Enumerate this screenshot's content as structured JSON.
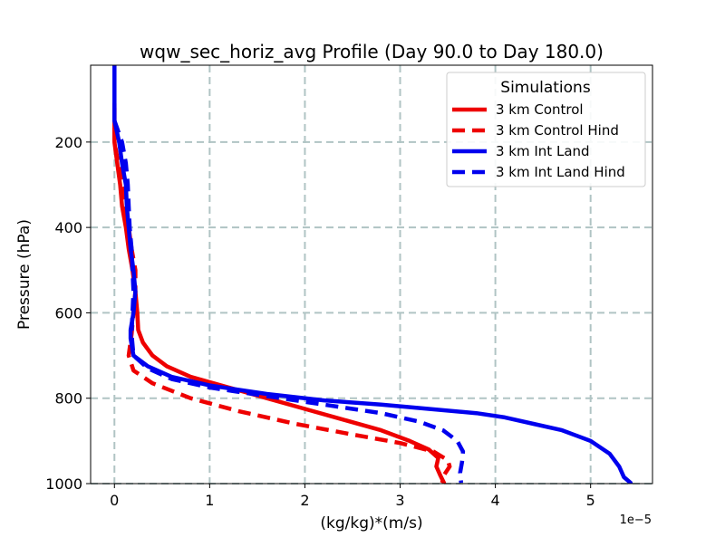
{
  "chart_data": {
    "type": "line",
    "title": "wqw_sec_horiz_avg Profile (Day 90.0 to Day 180.0)",
    "xlabel": "(kg/kg)*(m/s)",
    "ylabel": "Pressure (hPa)",
    "x_offset_label": "1e−5",
    "x_scale": 1e-05,
    "xlim": [
      -0.25,
      5.65
    ],
    "ylim": [
      1000,
      20
    ],
    "y_inverted": true,
    "x_ticks": [
      0,
      1,
      2,
      3,
      4,
      5
    ],
    "x_tick_labels": [
      "0",
      "1",
      "2",
      "3",
      "4",
      "5"
    ],
    "y_ticks": [
      200,
      400,
      600,
      800,
      1000
    ],
    "y_tick_labels": [
      "200",
      "400",
      "600",
      "800",
      "1000"
    ],
    "grid": true,
    "legend": {
      "title": "Simulations",
      "position": "top-right"
    },
    "series": [
      {
        "name": "3 km Control",
        "color": "#ee0000",
        "dash": "solid",
        "points": [
          [
            0.0,
            110
          ],
          [
            0.0,
            150
          ],
          [
            0.0,
            200
          ],
          [
            0.03,
            250
          ],
          [
            0.06,
            300
          ],
          [
            0.08,
            350
          ],
          [
            0.12,
            400
          ],
          [
            0.15,
            450
          ],
          [
            0.19,
            500
          ],
          [
            0.22,
            550
          ],
          [
            0.24,
            600
          ],
          [
            0.25,
            640
          ],
          [
            0.3,
            670
          ],
          [
            0.4,
            700
          ],
          [
            0.55,
            725
          ],
          [
            0.8,
            750
          ],
          [
            1.2,
            775
          ],
          [
            1.6,
            800
          ],
          [
            2.0,
            825
          ],
          [
            2.4,
            850
          ],
          [
            2.8,
            875
          ],
          [
            3.1,
            900
          ],
          [
            3.3,
            920
          ],
          [
            3.4,
            940
          ],
          [
            3.38,
            960
          ],
          [
            3.42,
            980
          ],
          [
            3.46,
            998
          ]
        ]
      },
      {
        "name": "3 km Control Hind",
        "color": "#ee0000",
        "dash": "dashed",
        "points": [
          [
            0.0,
            120
          ],
          [
            0.0,
            200
          ],
          [
            0.04,
            250
          ],
          [
            0.08,
            300
          ],
          [
            0.12,
            350
          ],
          [
            0.15,
            400
          ],
          [
            0.18,
            450
          ],
          [
            0.22,
            500
          ],
          [
            0.22,
            550
          ],
          [
            0.2,
            600
          ],
          [
            0.18,
            650
          ],
          [
            0.15,
            700
          ],
          [
            0.2,
            735
          ],
          [
            0.4,
            765
          ],
          [
            0.8,
            800
          ],
          [
            1.3,
            830
          ],
          [
            1.9,
            860
          ],
          [
            2.5,
            885
          ],
          [
            3.0,
            905
          ],
          [
            3.35,
            925
          ],
          [
            3.5,
            945
          ],
          [
            3.52,
            960
          ],
          [
            3.46,
            980
          ],
          [
            3.44,
            998
          ]
        ]
      },
      {
        "name": "3 km Int Land",
        "color": "#0000ee",
        "dash": "solid",
        "points": [
          [
            0.0,
            20
          ],
          [
            0.0,
            60
          ],
          [
            0.0,
            100
          ],
          [
            0.0,
            150
          ],
          [
            0.05,
            200
          ],
          [
            0.08,
            250
          ],
          [
            0.12,
            300
          ],
          [
            0.13,
            350
          ],
          [
            0.15,
            400
          ],
          [
            0.17,
            450
          ],
          [
            0.2,
            500
          ],
          [
            0.22,
            550
          ],
          [
            0.2,
            600
          ],
          [
            0.17,
            640
          ],
          [
            0.17,
            660
          ],
          [
            0.2,
            700
          ],
          [
            0.35,
            725
          ],
          [
            0.6,
            750
          ],
          [
            1.0,
            770
          ],
          [
            1.6,
            790
          ],
          [
            2.2,
            805
          ],
          [
            2.8,
            815
          ],
          [
            3.3,
            825
          ],
          [
            3.8,
            835
          ],
          [
            4.1,
            845
          ],
          [
            4.4,
            860
          ],
          [
            4.7,
            875
          ],
          [
            5.0,
            900
          ],
          [
            5.2,
            930
          ],
          [
            5.3,
            960
          ],
          [
            5.35,
            985
          ],
          [
            5.42,
            998
          ]
        ]
      },
      {
        "name": "3 km Int Land Hind",
        "color": "#0000ee",
        "dash": "dashed",
        "points": [
          [
            0.0,
            150
          ],
          [
            0.08,
            200
          ],
          [
            0.12,
            250
          ],
          [
            0.14,
            300
          ],
          [
            0.15,
            350
          ],
          [
            0.16,
            400
          ],
          [
            0.18,
            450
          ],
          [
            0.19,
            500
          ],
          [
            0.2,
            550
          ],
          [
            0.19,
            600
          ],
          [
            0.18,
            650
          ],
          [
            0.2,
            700
          ],
          [
            0.35,
            730
          ],
          [
            0.6,
            755
          ],
          [
            1.0,
            775
          ],
          [
            1.6,
            795
          ],
          [
            2.2,
            815
          ],
          [
            2.8,
            835
          ],
          [
            3.2,
            855
          ],
          [
            3.45,
            875
          ],
          [
            3.6,
            900
          ],
          [
            3.66,
            925
          ],
          [
            3.65,
            950
          ],
          [
            3.63,
            975
          ],
          [
            3.64,
            998
          ]
        ]
      }
    ]
  }
}
